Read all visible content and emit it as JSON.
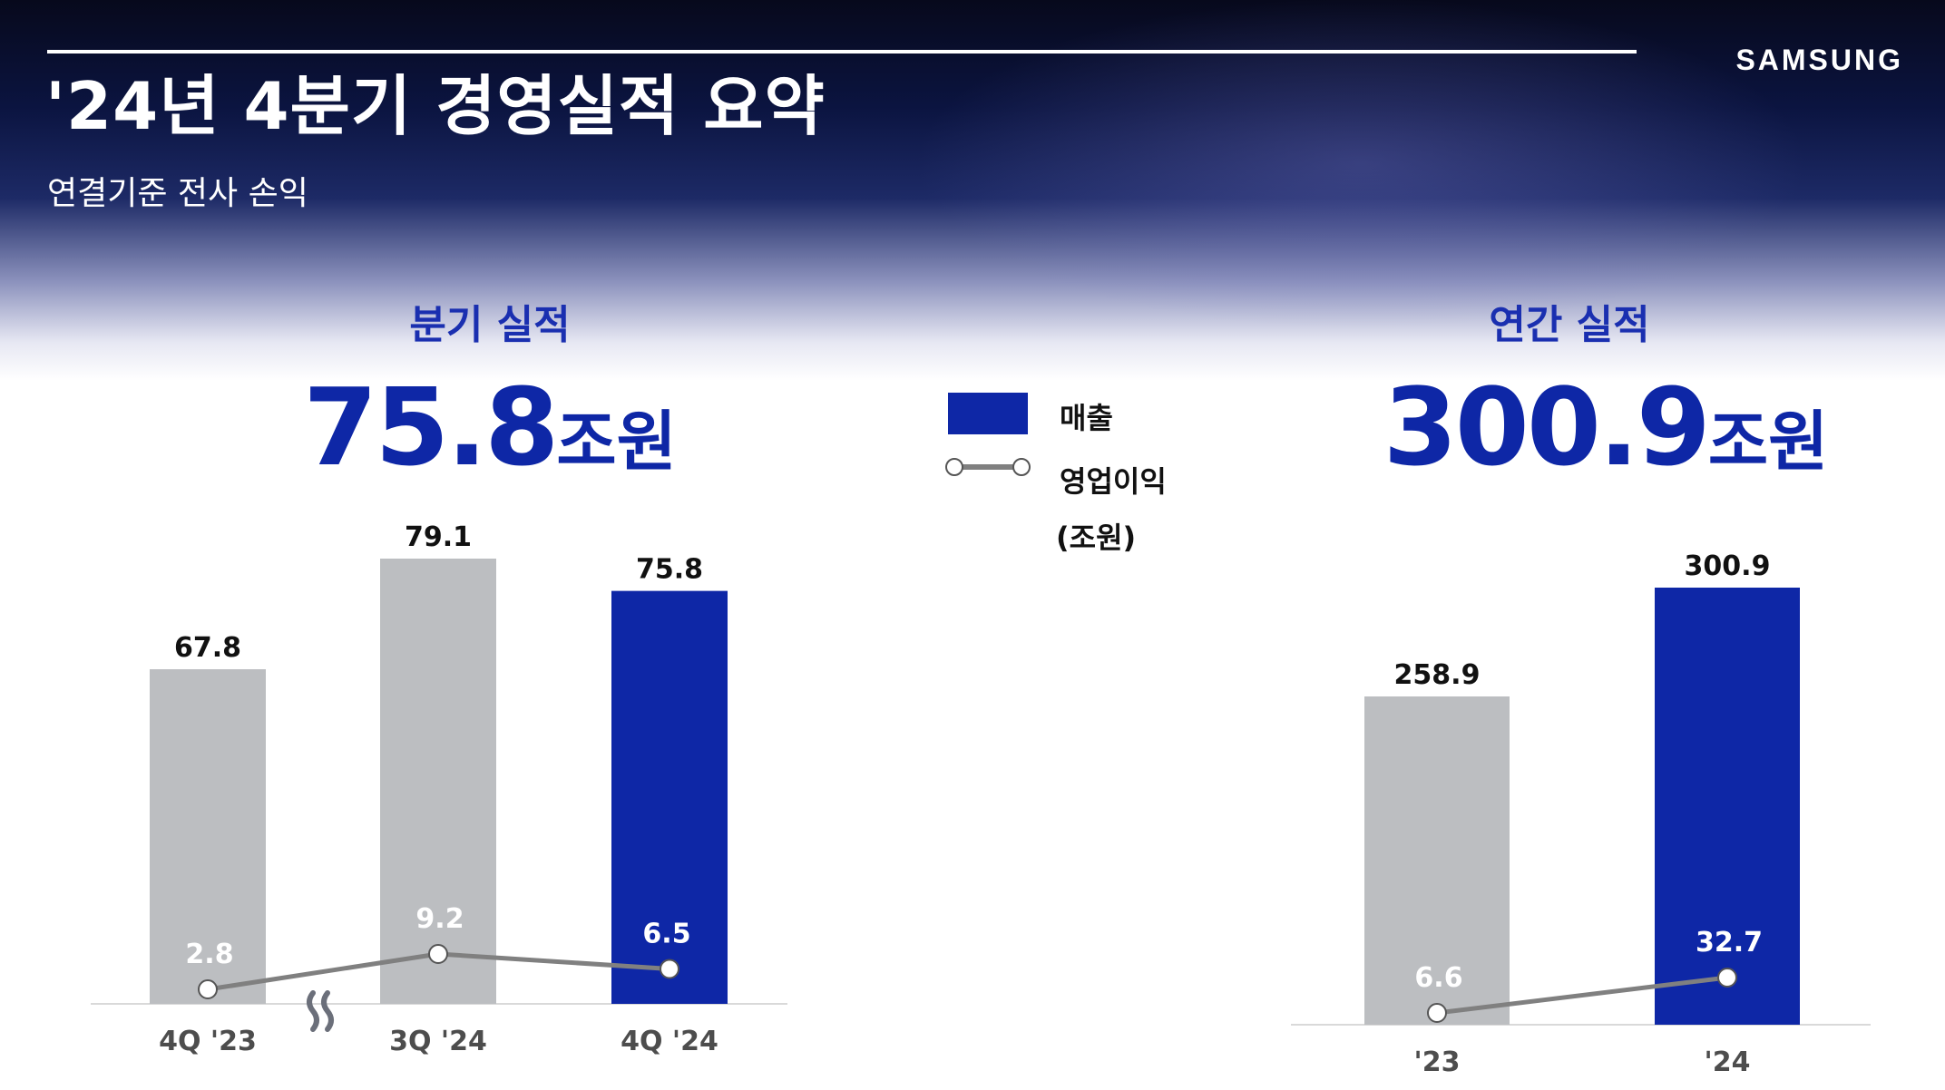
{
  "header": {
    "title": "'24년 4분기 경영실적 요약",
    "subtitle": "연결기준 전사 손익",
    "logo": "SAMSUNG"
  },
  "quarterly": {
    "section_title": "분기 실적",
    "headline_value": "75.8",
    "headline_unit": "조원"
  },
  "annual": {
    "section_title": "연간 실적",
    "headline_value": "300.9",
    "headline_unit": "조원"
  },
  "legend": {
    "sales_label": "매출",
    "op_label": "영업이익",
    "unit_label": "(조원)"
  },
  "colors": {
    "accent": "#0e27a6",
    "title_blue": "#1a2fb0",
    "past_bar": "#bcbec1",
    "op_line": "#808080"
  },
  "chart_data": [
    {
      "type": "bar",
      "categories": [
        "4Q '23",
        "3Q '24",
        "4Q '24"
      ],
      "series": [
        {
          "name": "매출",
          "values": [
            67.8,
            79.1,
            75.8
          ]
        },
        {
          "name": "영업이익",
          "values": [
            2.8,
            9.2,
            6.5
          ]
        }
      ],
      "highlight_index": 2,
      "axis_break": "between 4Q '23 and 3Q '24"
    },
    {
      "type": "bar",
      "categories": [
        "'23",
        "'24"
      ],
      "series": [
        {
          "name": "매출",
          "values": [
            258.9,
            300.9
          ]
        },
        {
          "name": "영업이익",
          "values": [
            6.6,
            32.7
          ]
        }
      ],
      "highlight_index": 1
    }
  ]
}
